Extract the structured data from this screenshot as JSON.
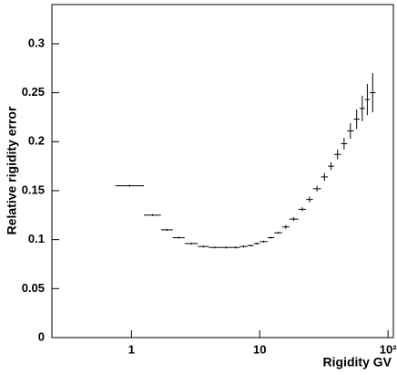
{
  "chart_data": {
    "type": "histogram",
    "x_label": "Rigidity  GV",
    "y_label": "Relative rigidity error",
    "xscale": "log",
    "xlim": [
      0.24,
      110
    ],
    "ylim": [
      0,
      0.34
    ],
    "xticks": [
      1,
      10,
      {
        "value": 100,
        "label": "10²"
      }
    ],
    "yticks": [
      0,
      0.05,
      0.1,
      0.15,
      0.2,
      0.25,
      0.3
    ],
    "color": "#000000",
    "bins": [
      0.75,
      1.25,
      1.7,
      2.1,
      2.6,
      3.3,
      4,
      5,
      6,
      7,
      8,
      9,
      10,
      11.5,
      13,
      15,
      17,
      20,
      23,
      26,
      30,
      34,
      38,
      43,
      48,
      54,
      60,
      66,
      72,
      80
    ],
    "values": [
      0.155,
      0.125,
      0.11,
      0.102,
      0.096,
      0.093,
      0.092,
      0.092,
      0.092,
      0.093,
      0.094,
      0.096,
      0.098,
      0.102,
      0.107,
      0.113,
      0.121,
      0.131,
      0.141,
      0.152,
      0.164,
      0.175,
      0.187,
      0.198,
      0.211,
      0.223,
      0.234,
      0.243,
      0.25
    ],
    "errors": [
      0.001,
      0.001,
      0.001,
      0.001,
      0.001,
      0.001,
      0.001,
      0.001,
      0.001,
      0.001,
      0.001,
      0.001,
      0.001,
      0.001,
      0.001,
      0.002,
      0.002,
      0.002,
      0.003,
      0.003,
      0.004,
      0.004,
      0.005,
      0.006,
      0.008,
      0.01,
      0.013,
      0.016,
      0.02
    ]
  }
}
